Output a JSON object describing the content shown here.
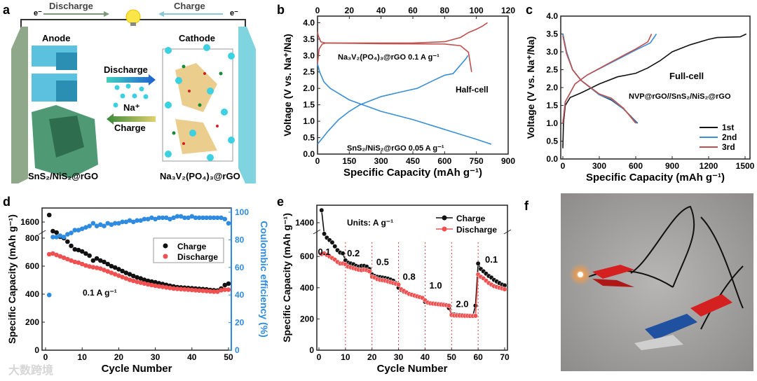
{
  "panel_a": {
    "label": "a",
    "top_discharge": "Discharge",
    "top_charge": "Charge",
    "electron_left": "e⁻",
    "electron_right": "e⁻",
    "anode": "Anode",
    "cathode": "Cathode",
    "mid_discharge": "Discharge",
    "mid_charge": "Charge",
    "ion": "Na⁺",
    "anode_material": "SnS₂/NiS₂@rGO",
    "cathode_material": "Na₃V₂(PO₄)₃@rGO"
  },
  "panel_f": {
    "label": "f"
  },
  "watermark": "大数跨境",
  "colors": {
    "red": "#c0504d",
    "blue": "#3a8fd6",
    "black": "#111111",
    "ce_blue": "#2e8be0",
    "disch_red": "#f05050"
  },
  "chart_data": [
    {
      "id": "b",
      "type": "line",
      "label": "b",
      "xlabel": "Specific Capacity (mAh g⁻¹)",
      "ylabel": "Voltage (V vs. Na⁺/Na)",
      "xlim": [
        0,
        900
      ],
      "xticks": [
        0,
        150,
        300,
        450,
        600,
        750,
        900
      ],
      "x2lim": [
        0,
        120
      ],
      "x2ticks": [
        0,
        20,
        40,
        60,
        80,
        100,
        120
      ],
      "ylim": [
        0,
        4.2
      ],
      "yticks": [
        "0.0",
        "0.5",
        "1.0",
        "1.5",
        "2.0",
        "2.5",
        "3.0",
        "3.5",
        "4.0"
      ],
      "annotations": [
        "Na₃V₂(PO₄)₃@rGO  0.1 A g⁻¹",
        "Half-cell",
        "SnS₂/NiS₂@rGO  0.05 A g⁻¹"
      ],
      "series": [
        {
          "name": "NVP charge",
          "axis": "top",
          "color": "#c0504d",
          "points": [
            [
              0,
              2.75
            ],
            [
              1,
              3.2
            ],
            [
              3,
              3.35
            ],
            [
              5,
              3.38
            ],
            [
              20,
              3.38
            ],
            [
              60,
              3.38
            ],
            [
              80,
              3.42
            ],
            [
              90,
              3.55
            ],
            [
              95,
              3.7
            ],
            [
              100,
              3.8
            ],
            [
              104,
              3.9
            ],
            [
              107,
              4.0
            ]
          ]
        },
        {
          "name": "NVP discharge",
          "axis": "top",
          "color": "#c0504d",
          "points": [
            [
              0,
              3.72
            ],
            [
              0.5,
              3.6
            ],
            [
              2,
              3.42
            ],
            [
              5,
              3.38
            ],
            [
              40,
              3.36
            ],
            [
              80,
              3.35
            ],
            [
              90,
              3.3
            ],
            [
              95,
              3.1
            ],
            [
              97,
              2.5
            ]
          ]
        },
        {
          "name": "SnS2/NiS2 discharge",
          "axis": "bottom",
          "color": "#3a8fd6",
          "points": [
            [
              0,
              2.75
            ],
            [
              10,
              2.5
            ],
            [
              30,
              2.2
            ],
            [
              60,
              2.0
            ],
            [
              150,
              1.65
            ],
            [
              300,
              1.3
            ],
            [
              450,
              1.05
            ],
            [
              600,
              0.75
            ],
            [
              750,
              0.45
            ],
            [
              820,
              0.3
            ]
          ]
        },
        {
          "name": "SnS2/NiS2 charge",
          "axis": "bottom",
          "color": "#3a8fd6",
          "points": [
            [
              0,
              0.3
            ],
            [
              50,
              0.7
            ],
            [
              100,
              1.05
            ],
            [
              150,
              1.3
            ],
            [
              200,
              1.5
            ],
            [
              300,
              1.75
            ],
            [
              400,
              1.9
            ],
            [
              470,
              2.0
            ],
            [
              550,
              2.25
            ],
            [
              600,
              2.4
            ],
            [
              640,
              2.45
            ],
            [
              700,
              2.9
            ],
            [
              710,
              3.0
            ]
          ]
        }
      ]
    },
    {
      "id": "c",
      "type": "line",
      "label": "c",
      "xlabel": "Specific Capacity (mAh g⁻¹)",
      "ylabel": "Voltage (V vs. Na⁺/Na)",
      "xlim": [
        0,
        1530
      ],
      "xticks": [
        0,
        300,
        600,
        900,
        1200,
        1500
      ],
      "ylim": [
        0,
        4.0
      ],
      "yticks": [
        "0.0",
        "0.5",
        "1.0",
        "1.5",
        "2.0",
        "2.5",
        "3.0",
        "3.5",
        "4.0"
      ],
      "annotations": [
        "Full-cell",
        "NVP@rGO//SnS₂/NiS₂@rGO"
      ],
      "legend": [
        "1st",
        "2nd",
        "3rd"
      ],
      "series": [
        {
          "name": "1st",
          "color": "#111111",
          "points": [
            [
              0,
              0.3
            ],
            [
              5,
              1.0
            ],
            [
              20,
              1.5
            ],
            [
              60,
              1.72
            ],
            [
              150,
              1.85
            ],
            [
              300,
              2.1
            ],
            [
              450,
              2.3
            ],
            [
              600,
              2.4
            ],
            [
              700,
              2.55
            ],
            [
              800,
              2.75
            ],
            [
              900,
              3.0
            ],
            [
              1050,
              3.2
            ],
            [
              1200,
              3.35
            ],
            [
              1270,
              3.4
            ],
            [
              1460,
              3.42
            ],
            [
              1510,
              3.5
            ]
          ]
        },
        {
          "name": "1st",
          "color": "#111111",
          "points": [
            [
              0,
              3.5
            ],
            [
              30,
              3.0
            ],
            [
              80,
              2.5
            ],
            [
              150,
              2.2
            ],
            [
              300,
              1.8
            ],
            [
              400,
              1.65
            ],
            [
              500,
              1.4
            ],
            [
              615,
              1.0
            ]
          ]
        },
        {
          "name": "2nd",
          "color": "#3a8fd6",
          "points": [
            [
              0,
              1.0
            ],
            [
              20,
              1.6
            ],
            [
              100,
              2.1
            ],
            [
              200,
              2.35
            ],
            [
              400,
              2.7
            ],
            [
              600,
              3.05
            ],
            [
              720,
              3.25
            ],
            [
              770,
              3.5
            ]
          ]
        },
        {
          "name": "2nd",
          "color": "#3a8fd6",
          "points": [
            [
              0,
              3.5
            ],
            [
              30,
              3.0
            ],
            [
              80,
              2.5
            ],
            [
              150,
              2.2
            ],
            [
              300,
              1.8
            ],
            [
              400,
              1.67
            ],
            [
              500,
              1.4
            ],
            [
              610,
              1.0
            ]
          ]
        },
        {
          "name": "3rd",
          "color": "#c0504d",
          "points": [
            [
              0,
              1.0
            ],
            [
              20,
              1.6
            ],
            [
              100,
              2.1
            ],
            [
              200,
              2.35
            ],
            [
              400,
              2.72
            ],
            [
              600,
              3.08
            ],
            [
              700,
              3.28
            ],
            [
              730,
              3.5
            ]
          ]
        },
        {
          "name": "3rd",
          "color": "#c0504d",
          "points": [
            [
              0,
              3.45
            ],
            [
              30,
              2.95
            ],
            [
              80,
              2.5
            ],
            [
              150,
              2.2
            ],
            [
              300,
              1.82
            ],
            [
              400,
              1.7
            ],
            [
              500,
              1.42
            ],
            [
              600,
              1.0
            ]
          ]
        }
      ]
    },
    {
      "id": "d",
      "type": "scatter",
      "label": "d",
      "xlabel": "Cycle Number",
      "ylabel": "Specific Capacity (mAh g⁻¹)",
      "y2label": "Coulombic efficiency (%)",
      "xlim": [
        0,
        50
      ],
      "xticks": [
        0,
        10,
        20,
        30,
        40,
        50
      ],
      "yticks": [
        0,
        200,
        400,
        600,
        800,
        1600
      ],
      "ybreak": [
        860,
        1500
      ],
      "y2lim": [
        0,
        100
      ],
      "y2ticks": [
        0,
        20,
        40,
        60,
        80,
        100
      ],
      "annotations": [
        "0.1 A g⁻¹"
      ],
      "legend": [
        "Charge",
        "Discharge"
      ],
      "series": [
        {
          "name": "Charge",
          "color": "#111111",
          "values": [
            1650,
            850,
            840,
            810,
            800,
            775,
            745,
            720,
            715,
            705,
            690,
            675,
            640,
            655,
            640,
            630,
            615,
            600,
            590,
            578,
            565,
            552,
            542,
            530,
            520,
            512,
            502,
            495,
            490,
            485,
            478,
            472,
            466,
            460,
            455,
            450,
            448,
            446,
            444,
            442,
            440,
            438,
            436,
            434,
            430,
            428,
            426,
            440,
            465,
            475
          ]
        },
        {
          "name": "Discharge",
          "color": "#f05050",
          "values": [
            685,
            690,
            680,
            670,
            660,
            650,
            640,
            630,
            625,
            615,
            605,
            598,
            592,
            588,
            582,
            572,
            562,
            552,
            542,
            532,
            522,
            512,
            502,
            495,
            488,
            482,
            476,
            470,
            465,
            460,
            456,
            452,
            448,
            444,
            440,
            438,
            436,
            434,
            432,
            430,
            428,
            426,
            424,
            422,
            420,
            418,
            418,
            428,
            432,
            432
          ]
        },
        {
          "name": "Coulombic efficiency",
          "axis": "right",
          "color": "#2e8be0",
          "values": [
            40,
            82,
            82,
            83,
            82,
            84,
            85,
            87,
            87,
            88,
            89,
            90,
            92,
            90,
            91,
            90,
            92,
            91,
            92,
            92,
            93,
            93,
            94,
            93,
            94,
            94,
            95,
            95,
            96,
            95,
            96,
            96,
            96,
            95,
            96,
            97,
            97,
            96,
            96,
            97,
            96,
            96,
            96,
            96,
            96,
            96,
            96,
            96,
            95,
            92
          ]
        }
      ]
    },
    {
      "id": "e",
      "type": "line",
      "label": "e",
      "xlabel": "Cycle Number",
      "ylabel": "Specific Capacity (mAh g⁻¹)",
      "xlim": [
        0,
        70
      ],
      "xticks": [
        0,
        10,
        20,
        30,
        40,
        50,
        60,
        70
      ],
      "yticks": [
        0,
        200,
        400,
        600,
        1400
      ],
      "ybreak": [
        760,
        1350
      ],
      "annotations": [
        "Units: A g⁻¹"
      ],
      "rates": [
        {
          "label": "0.1",
          "cycle": 2
        },
        {
          "label": "0.2",
          "cycle": 13
        },
        {
          "label": "0.5",
          "cycle": 24
        },
        {
          "label": "0.8",
          "cycle": 34
        },
        {
          "label": "1.0",
          "cycle": 44
        },
        {
          "label": "2.0",
          "cycle": 54
        },
        {
          "label": "0.1",
          "cycle": 65
        }
      ],
      "rate_values": [
        610,
        600,
        545,
        450,
        395,
        275,
        560
      ],
      "dividers": [
        10,
        20,
        30,
        40,
        50,
        60
      ],
      "legend": [
        "Charge",
        "Discharge"
      ],
      "series": [
        {
          "name": "Charge",
          "color": "#111111",
          "values": [
            1480,
            745,
            720,
            705,
            690,
            665,
            640,
            625,
            620,
            575,
            560,
            555,
            550,
            540,
            535,
            540,
            540,
            535,
            520,
            485,
            475,
            470,
            468,
            465,
            462,
            458,
            452,
            445,
            430,
            400,
            385,
            375,
            368,
            360,
            355,
            350,
            345,
            340,
            335,
            310,
            305,
            302,
            300,
            298,
            296,
            295,
            293,
            290,
            270,
            230,
            228,
            226,
            225,
            224,
            223,
            222,
            221,
            220,
            285,
            555,
            520,
            505,
            490,
            475,
            465,
            450,
            440,
            430,
            420,
            415
          ]
        },
        {
          "name": "Discharge",
          "color": "#f05050",
          "values": [
            615,
            620,
            610,
            600,
            590,
            580,
            565,
            555,
            555,
            550,
            535,
            530,
            525,
            520,
            515,
            512,
            515,
            512,
            505,
            470,
            465,
            455,
            450,
            448,
            445,
            440,
            435,
            430,
            425,
            420,
            390,
            380,
            370,
            360,
            355,
            350,
            345,
            340,
            335,
            320,
            305,
            300,
            298,
            296,
            294,
            292,
            290,
            288,
            285,
            225,
            222,
            222,
            221,
            221,
            220,
            220,
            219,
            219,
            220,
            485,
            470,
            460,
            445,
            430,
            420,
            410,
            405,
            400,
            395,
            390
          ]
        }
      ]
    }
  ]
}
